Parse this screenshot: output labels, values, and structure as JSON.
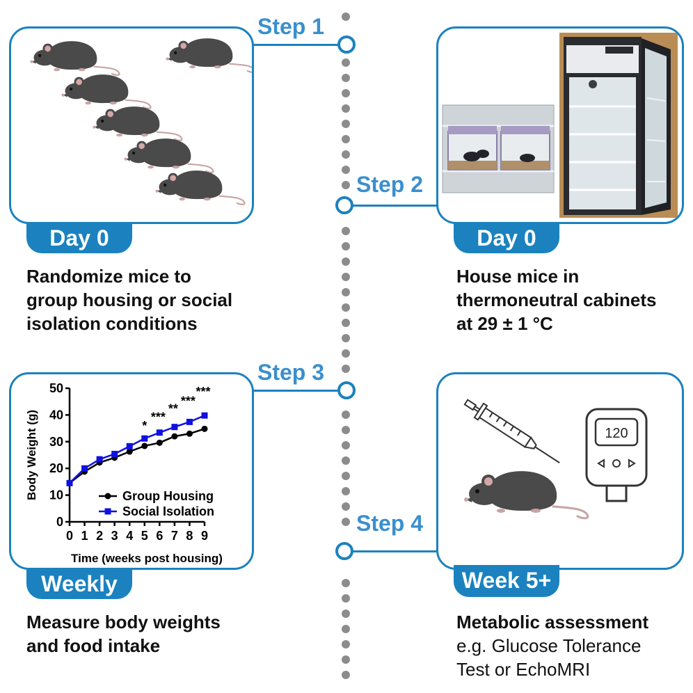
{
  "steps": [
    {
      "label": "Step 1",
      "tag": "Day 0",
      "desc_bold": [
        "Randomize mice to",
        "group housing or social",
        "isolation conditions"
      ],
      "desc_normal": []
    },
    {
      "label": "Step 2",
      "tag": "Day 0",
      "desc_bold": [
        "House mice in",
        "thermoneutral cabinets",
        "at 29 ± 1 °C"
      ],
      "desc_normal": []
    },
    {
      "label": "Step 3",
      "tag": "Weekly",
      "desc_bold": [
        "Measure body weights",
        "and food intake"
      ],
      "desc_normal": []
    },
    {
      "label": "Step 4",
      "tag": "Week 5+",
      "desc_bold": [
        "Metabolic assessment"
      ],
      "desc_normal": [
        "e.g. Glucose Tolerance",
        "Test or EchoMRI"
      ]
    }
  ],
  "glucometer_reading": "120",
  "colors": {
    "accent": "#1b82bf",
    "step_text": "#3a8fce",
    "timeline_dot": "#8c8c8c",
    "mouse": "#4a4a4a",
    "series_group": "#000000",
    "series_isolation": "#1010e0"
  },
  "chart_data": {
    "type": "line",
    "xlabel": "Time (weeks post housing)",
    "ylabel": "Body Weight (g)",
    "xlim": [
      0,
      9
    ],
    "ylim": [
      0,
      50
    ],
    "x": [
      0,
      1,
      2,
      3,
      4,
      5,
      6,
      7,
      8,
      9
    ],
    "xticks": [
      "0",
      "1",
      "2",
      "3",
      "4",
      "5",
      "6",
      "7",
      "8",
      "9"
    ],
    "yticks": [
      "0",
      "10",
      "20",
      "30",
      "40",
      "50"
    ],
    "series": [
      {
        "name": "Group Housing",
        "marker": "circle",
        "values": [
          14.5,
          18.8,
          22.2,
          24.0,
          26.3,
          28.4,
          29.6,
          32.0,
          33.0,
          34.8
        ]
      },
      {
        "name": "Social Isolation",
        "marker": "square",
        "values": [
          14.5,
          20.0,
          23.4,
          25.4,
          28.3,
          31.2,
          33.4,
          35.5,
          37.4,
          39.8
        ]
      }
    ],
    "annotations": [
      {
        "x": 5,
        "text": "*"
      },
      {
        "x": 6,
        "text": "***"
      },
      {
        "x": 7,
        "text": "**"
      },
      {
        "x": 8,
        "text": "***"
      },
      {
        "x": 9,
        "text": "***"
      }
    ],
    "legend": "bottom-right",
    "grid": false
  }
}
